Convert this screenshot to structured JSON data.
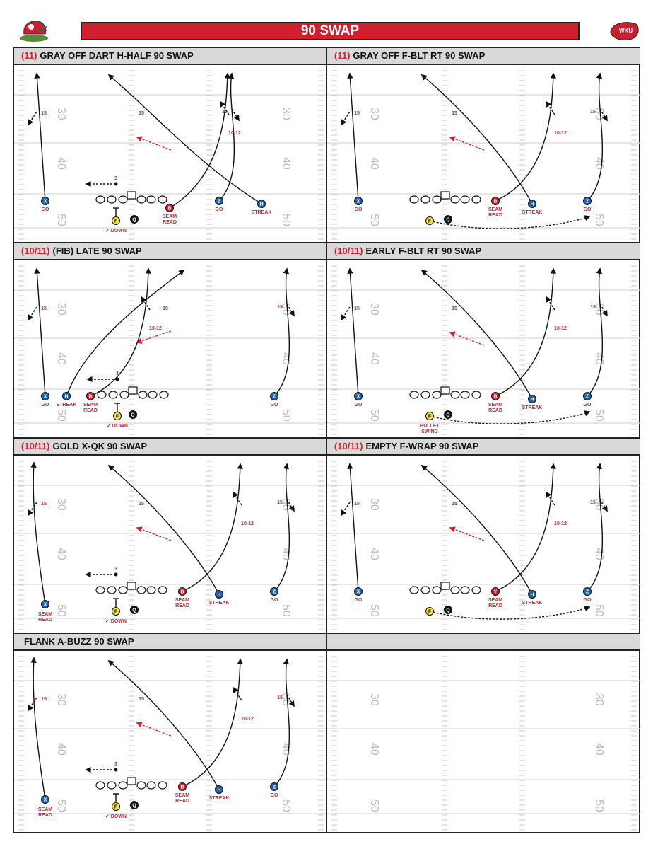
{
  "page": {
    "title": "90 SWAP"
  },
  "logos": {
    "left": "helmet-logo",
    "right": "wku-logo",
    "right_text": "WKU"
  },
  "colors": {
    "red": "#d11f2e",
    "blue": "#1f5fa8",
    "yellow": "#f4e04d",
    "black": "#111111",
    "panel_header": "#d9d9d9"
  },
  "panels": [
    {
      "prefix": "(11)",
      "title": "GRAY OFF DART H-HALF 90 SWAP"
    },
    {
      "prefix": "(11)",
      "title": "GRAY OFF F-BLT RT 90 SWAP"
    },
    {
      "prefix": "(10/11)",
      "title": "(FIB) LATE 90 SWAP"
    },
    {
      "prefix": "(10/11)",
      "title": "EARLY F-BLT RT 90 SWAP"
    },
    {
      "prefix": "(10/11)",
      "title": "GOLD X-QK 90 SWAP"
    },
    {
      "prefix": "(10/11)",
      "title": "EMPTY F-WRAP 90 SWAP"
    },
    {
      "prefix": "",
      "title": "FLANK A-BUZZ 90 SWAP"
    },
    {
      "prefix": "",
      "title": ""
    }
  ],
  "yard_numbers": {
    "top": "30",
    "mid": "40",
    "bottom": "50"
  },
  "labels": {
    "go": "GO",
    "streak": "STREAK",
    "seam": "SEAM",
    "read": "READ",
    "down": "✓ DOWN",
    "bullet": "BULLET",
    "swing": "SWING",
    "depth_15": "15",
    "depth_10_12": "10-12",
    "three": "3"
  }
}
